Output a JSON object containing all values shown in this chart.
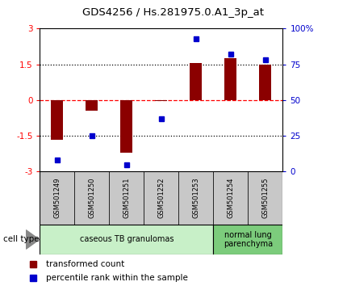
{
  "title": "GDS4256 / Hs.281975.0.A1_3p_at",
  "samples": [
    "GSM501249",
    "GSM501250",
    "GSM501251",
    "GSM501252",
    "GSM501253",
    "GSM501254",
    "GSM501255"
  ],
  "transformed_counts": [
    -1.65,
    -0.45,
    -2.2,
    -0.05,
    1.55,
    1.75,
    1.5
  ],
  "percentile_ranks": [
    8,
    25,
    5,
    37,
    93,
    82,
    78
  ],
  "bar_color": "#8B0000",
  "dot_color": "#0000CD",
  "ylim_left": [
    -3,
    3
  ],
  "ylim_right": [
    0,
    100
  ],
  "yticks_left": [
    -3,
    -1.5,
    0,
    1.5,
    3
  ],
  "ytick_labels_left": [
    "-3",
    "-1.5",
    "0",
    "1.5",
    "3"
  ],
  "yticks_right": [
    0,
    25,
    50,
    75,
    100
  ],
  "ytick_labels_right": [
    "0",
    "25",
    "50",
    "75",
    "100%"
  ],
  "hlines": [
    1.5,
    0,
    -1.5
  ],
  "hline_styles": [
    "dotted",
    "dashed",
    "dotted"
  ],
  "hline_colors": [
    "black",
    "red",
    "black"
  ],
  "cell_type_groups": [
    {
      "label": "caseous TB granulomas",
      "samples": [
        0,
        1,
        2,
        3,
        4
      ],
      "color": "#c8f0c8"
    },
    {
      "label": "normal lung\nparenchyma",
      "samples": [
        5,
        6
      ],
      "color": "#7ccc7c"
    }
  ],
  "cell_type_label": "cell type",
  "legend_entries": [
    {
      "color": "#8B0000",
      "label": "transformed count"
    },
    {
      "color": "#0000CD",
      "label": "percentile rank within the sample"
    }
  ],
  "tick_area_color": "#c8c8c8",
  "bar_width": 0.35
}
